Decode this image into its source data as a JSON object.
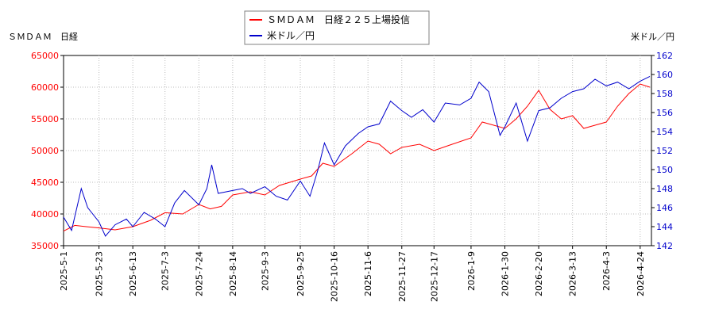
{
  "chart_data": {
    "type": "line",
    "title": "",
    "colors": {
      "left_axis": "#ff0000",
      "right_axis": "#0000cc",
      "grid": "#bbbbbb"
    },
    "grid": true,
    "legend": {
      "placement": "top-center",
      "entries": [
        "ＳＭＤＡＭ　日経２２５上場投信",
        "米ドル／円"
      ]
    },
    "y_left": {
      "label": "ＳＭＤＡＭ　日経",
      "range": [
        35000,
        65000
      ],
      "ticks": [
        "65000",
        "60000",
        "55000",
        "50000",
        "45000",
        "40000",
        "35000"
      ]
    },
    "y_right": {
      "label": "米ドル／円",
      "range": [
        142,
        162
      ],
      "ticks": [
        "162",
        "160",
        "158",
        "156",
        "154",
        "152",
        "150",
        "148",
        "146",
        "144",
        "142"
      ]
    },
    "x": {
      "range": [
        "2025-05-01",
        "2026-05-01"
      ],
      "ticks": [
        "2025-5-1",
        "2025-5-23",
        "2025-6-13",
        "2025-7-3",
        "2025-7-24",
        "2025-8-14",
        "2025-9-3",
        "2025-9-25",
        "2025-10-16",
        "2025-11-6",
        "2025-11-27",
        "2025-12-17",
        "2026-1-9",
        "2026-1-30",
        "2026-2-20",
        "2026-3-13",
        "2026-4-3",
        "2026-4-24"
      ]
    },
    "series": [
      {
        "name": "ＳＭＤＡＭ　日経２２５上場投信",
        "axis": "left",
        "color": "#ff0000",
        "points": [
          [
            "2025-05-01",
            37300
          ],
          [
            "2025-05-08",
            38200
          ],
          [
            "2025-05-15",
            38000
          ],
          [
            "2025-05-23",
            37800
          ],
          [
            "2025-06-02",
            37500
          ],
          [
            "2025-06-13",
            38000
          ],
          [
            "2025-06-24",
            39000
          ],
          [
            "2025-07-03",
            40200
          ],
          [
            "2025-07-14",
            40000
          ],
          [
            "2025-07-24",
            41500
          ],
          [
            "2025-07-31",
            40800
          ],
          [
            "2025-08-07",
            41200
          ],
          [
            "2025-08-14",
            43000
          ],
          [
            "2025-08-25",
            43500
          ],
          [
            "2025-09-03",
            43000
          ],
          [
            "2025-09-12",
            44500
          ],
          [
            "2025-09-25",
            45500
          ],
          [
            "2025-10-02",
            46000
          ],
          [
            "2025-10-09",
            48000
          ],
          [
            "2025-10-16",
            47500
          ],
          [
            "2025-10-27",
            49500
          ],
          [
            "2025-11-06",
            51500
          ],
          [
            "2025-11-13",
            51000
          ],
          [
            "2025-11-20",
            49500
          ],
          [
            "2025-11-27",
            50500
          ],
          [
            "2025-12-08",
            51000
          ],
          [
            "2025-12-17",
            50000
          ],
          [
            "2025-12-26",
            50800
          ],
          [
            "2026-01-09",
            52000
          ],
          [
            "2026-01-16",
            54500
          ],
          [
            "2026-01-30",
            53500
          ],
          [
            "2026-02-06",
            55000
          ],
          [
            "2026-02-13",
            57000
          ],
          [
            "2026-02-20",
            59500
          ],
          [
            "2026-02-27",
            56500
          ],
          [
            "2026-03-06",
            55000
          ],
          [
            "2026-03-13",
            55500
          ],
          [
            "2026-03-20",
            53500
          ],
          [
            "2026-03-27",
            54000
          ],
          [
            "2026-04-03",
            54500
          ],
          [
            "2026-04-10",
            57000
          ],
          [
            "2026-04-17",
            59000
          ],
          [
            "2026-04-24",
            60500
          ],
          [
            "2026-04-30",
            60000
          ]
        ]
      },
      {
        "name": "米ドル／円",
        "axis": "right",
        "color": "#0000cc",
        "points": [
          [
            "2025-05-01",
            145.0
          ],
          [
            "2025-05-06",
            143.6
          ],
          [
            "2025-05-12",
            148.0
          ],
          [
            "2025-05-16",
            146.0
          ],
          [
            "2025-05-23",
            144.5
          ],
          [
            "2025-05-27",
            143.0
          ],
          [
            "2025-06-02",
            144.2
          ],
          [
            "2025-06-09",
            144.8
          ],
          [
            "2025-06-13",
            144.0
          ],
          [
            "2025-06-20",
            145.5
          ],
          [
            "2025-06-27",
            144.8
          ],
          [
            "2025-07-03",
            144.0
          ],
          [
            "2025-07-09",
            146.5
          ],
          [
            "2025-07-15",
            147.8
          ],
          [
            "2025-07-24",
            146.3
          ],
          [
            "2025-07-29",
            148.0
          ],
          [
            "2025-08-01",
            150.5
          ],
          [
            "2025-08-05",
            147.5
          ],
          [
            "2025-08-14",
            147.8
          ],
          [
            "2025-08-20",
            148.0
          ],
          [
            "2025-08-25",
            147.5
          ],
          [
            "2025-09-03",
            148.2
          ],
          [
            "2025-09-10",
            147.2
          ],
          [
            "2025-09-17",
            146.8
          ],
          [
            "2025-09-25",
            148.8
          ],
          [
            "2025-10-01",
            147.2
          ],
          [
            "2025-10-06",
            150.0
          ],
          [
            "2025-10-10",
            152.8
          ],
          [
            "2025-10-16",
            150.5
          ],
          [
            "2025-10-23",
            152.5
          ],
          [
            "2025-10-31",
            153.8
          ],
          [
            "2025-11-06",
            154.5
          ],
          [
            "2025-11-13",
            154.8
          ],
          [
            "2025-11-20",
            157.2
          ],
          [
            "2025-11-27",
            156.2
          ],
          [
            "2025-12-03",
            155.5
          ],
          [
            "2025-12-10",
            156.3
          ],
          [
            "2025-12-17",
            155.0
          ],
          [
            "2025-12-24",
            157.0
          ],
          [
            "2026-01-02",
            156.8
          ],
          [
            "2026-01-09",
            157.5
          ],
          [
            "2026-01-14",
            159.2
          ],
          [
            "2026-01-20",
            158.2
          ],
          [
            "2026-01-27",
            153.6
          ],
          [
            "2026-01-30",
            154.5
          ],
          [
            "2026-02-06",
            157.0
          ],
          [
            "2026-02-13",
            153.0
          ],
          [
            "2026-02-20",
            156.2
          ],
          [
            "2026-02-27",
            156.5
          ],
          [
            "2026-03-06",
            157.5
          ],
          [
            "2026-03-13",
            158.2
          ],
          [
            "2026-03-20",
            158.5
          ],
          [
            "2026-03-27",
            159.5
          ],
          [
            "2026-04-03",
            158.8
          ],
          [
            "2026-04-10",
            159.2
          ],
          [
            "2026-04-17",
            158.5
          ],
          [
            "2026-04-24",
            159.3
          ],
          [
            "2026-04-30",
            159.8
          ]
        ]
      }
    ]
  }
}
